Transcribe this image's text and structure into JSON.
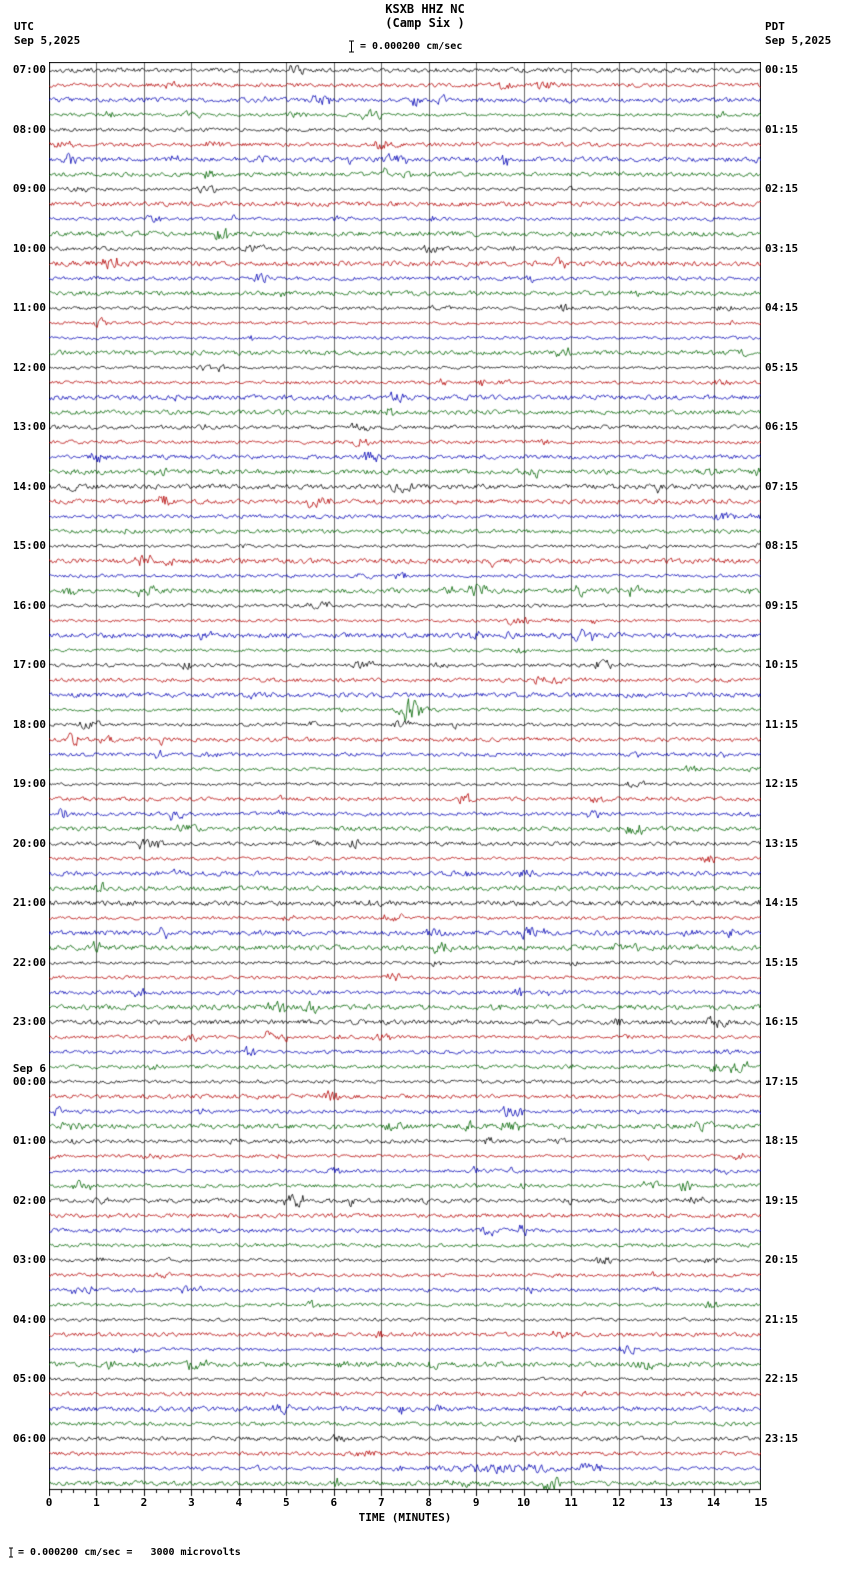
{
  "header": {
    "station_title": "KSXB HHZ NC",
    "station_subtitle": "(Camp Six )",
    "left_timezone": "UTC",
    "left_date": "Sep 5,2025",
    "right_timezone": "PDT",
    "right_date": "Sep 5,2025",
    "scale_text": "= 0.000200 cm/sec"
  },
  "footer": {
    "x_axis_title": "TIME (MINUTES)",
    "scale_note": "= 0.000200 cm/sec =   3000 microvolts"
  },
  "chart_data": {
    "type": "line",
    "kind": "seismogram-helicorder",
    "title": "KSXB HHZ NC (Camp Six )",
    "xlabel": "TIME (MINUTES)",
    "x_range_minutes": [
      0,
      15
    ],
    "x_ticks": [
      "0",
      "1",
      "2",
      "3",
      "4",
      "5",
      "6",
      "7",
      "8",
      "9",
      "10",
      "11",
      "12",
      "13",
      "14",
      "15"
    ],
    "minutes_per_row": 15,
    "rows_per_hour": 4,
    "trace_colors": [
      "#000000",
      "#b40000",
      "#0000b4",
      "#006400"
    ],
    "grid_color": "#666666",
    "noise_seed": 20250905,
    "hours": [
      {
        "utc": "07:00",
        "pdt": "00:15"
      },
      {
        "utc": "08:00",
        "pdt": "01:15"
      },
      {
        "utc": "09:00",
        "pdt": "02:15"
      },
      {
        "utc": "10:00",
        "pdt": "03:15"
      },
      {
        "utc": "11:00",
        "pdt": "04:15"
      },
      {
        "utc": "12:00",
        "pdt": "05:15"
      },
      {
        "utc": "13:00",
        "pdt": "06:15"
      },
      {
        "utc": "14:00",
        "pdt": "07:15"
      },
      {
        "utc": "15:00",
        "pdt": "08:15"
      },
      {
        "utc": "16:00",
        "pdt": "09:15"
      },
      {
        "utc": "17:00",
        "pdt": "10:15"
      },
      {
        "utc": "18:00",
        "pdt": "11:15"
      },
      {
        "utc": "19:00",
        "pdt": "12:15"
      },
      {
        "utc": "20:00",
        "pdt": "13:15"
      },
      {
        "utc": "21:00",
        "pdt": "14:15"
      },
      {
        "utc": "22:00",
        "pdt": "15:15"
      },
      {
        "utc": "23:00",
        "pdt": "16:15"
      },
      {
        "utc": "00:00",
        "date_prefix": "Sep 6",
        "pdt": "17:15"
      },
      {
        "utc": "01:00",
        "pdt": "18:15"
      },
      {
        "utc": "02:00",
        "pdt": "19:15"
      },
      {
        "utc": "03:00",
        "pdt": "20:15"
      },
      {
        "utc": "04:00",
        "pdt": "21:15"
      },
      {
        "utc": "05:00",
        "pdt": "22:15"
      },
      {
        "utc": "06:00",
        "pdt": "23:15"
      }
    ],
    "events": [
      {
        "row_index": 43,
        "start_minute": 7.2,
        "end_minute": 7.9,
        "amplitude": 4.0
      },
      {
        "row_index": 94,
        "start_minute": 7.8,
        "end_minute": 11.2,
        "amplitude": 3.2
      },
      {
        "row_index": 95,
        "start_minute": 8.0,
        "end_minute": 9.5,
        "amplitude": 1.8
      }
    ]
  }
}
